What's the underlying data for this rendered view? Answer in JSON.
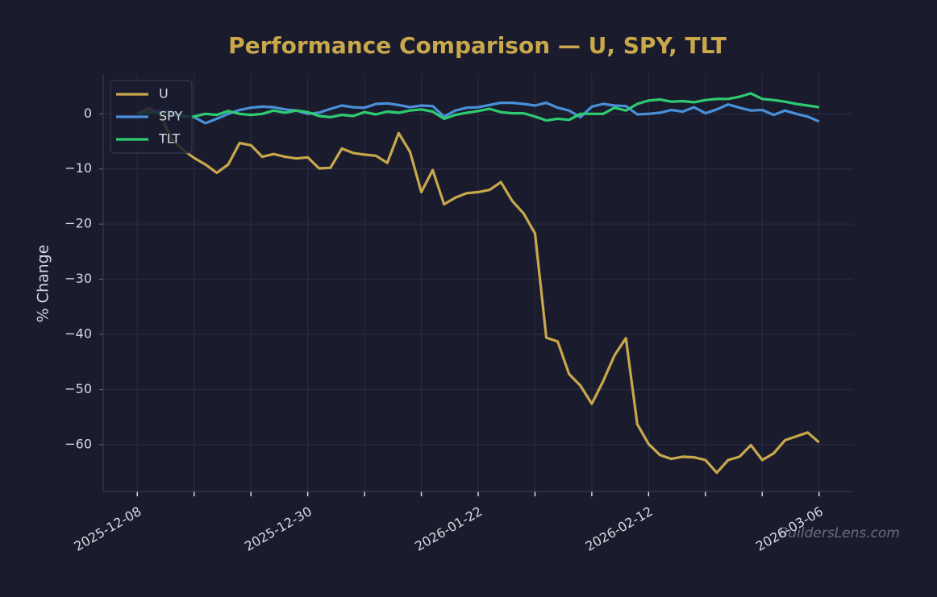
{
  "chart_data": {
    "type": "line",
    "title": "Performance Comparison — U, SPY, TLT",
    "y_label": "% Change",
    "watermark": "BuildersLens.com",
    "categories": [
      "2025-12-08",
      null,
      null,
      null,
      null,
      null,
      null,
      null,
      null,
      null,
      null,
      null,
      null,
      null,
      null,
      "2025-12-30",
      null,
      null,
      null,
      null,
      null,
      null,
      null,
      null,
      null,
      null,
      null,
      null,
      null,
      null,
      "2026-01-22",
      null,
      null,
      null,
      null,
      null,
      null,
      null,
      null,
      null,
      null,
      null,
      null,
      null,
      null,
      "2026-02-12",
      null,
      null,
      null,
      null,
      null,
      null,
      null,
      null,
      null,
      null,
      null,
      null,
      null,
      null,
      "2026-03-06"
    ],
    "series": [
      {
        "name": "U",
        "color": "#c9a84c",
        "values": [
          0,
          1,
          0,
          -4.5,
          -6.5,
          -8,
          -9.2,
          -10.7,
          -9.2,
          -5.3,
          -5.7,
          -7.8,
          -7.3,
          -7.8,
          -8.1,
          -7.9,
          -9.9,
          -9.8,
          -6.3,
          -7.1,
          -7.4,
          -7.6,
          -8.9,
          -3.5,
          -6.9,
          -14.2,
          -10.2,
          -16.4,
          -15.2,
          -14.4,
          -14.2,
          -13.8,
          -12.4,
          -15.8,
          -18.1,
          -21.7,
          -40.6,
          -41.3,
          -47.2,
          -49.3,
          -52.6,
          -48.5,
          -43.8,
          -40.7,
          -56.3,
          -59.9,
          -61.9,
          -62.6,
          -62.2,
          -62.3,
          -62.8,
          -65.1,
          -62.8,
          -62.2,
          -60.1,
          -62.8,
          -61.6,
          -59.2,
          -58.5,
          -57.8,
          -59.6
        ]
      },
      {
        "name": "SPY",
        "color": "#4a90d9",
        "values": [
          0,
          0.3,
          0.5,
          0.4,
          -0.3,
          -0.6,
          -1.7,
          -0.9,
          0,
          0.7,
          1.1,
          1.3,
          1.2,
          0.8,
          0.6,
          0,
          0.2,
          0.9,
          1.5,
          1.2,
          1.1,
          1.8,
          1.9,
          1.6,
          1.2,
          1.5,
          1.4,
          -0.5,
          0.6,
          1.1,
          1.2,
          1.6,
          2,
          2,
          1.8,
          1.5,
          2,
          1.1,
          0.6,
          -0.6,
          1.3,
          1.8,
          1.5,
          1.4,
          -0.1,
          0,
          0.2,
          0.7,
          0.4,
          1.2,
          0.1,
          0.8,
          1.7,
          1.1,
          0.6,
          0.7,
          -0.2,
          0.6,
          0,
          -0.5,
          -1.4
        ]
      },
      {
        "name": "TLT",
        "color": "#2ecc71",
        "values": [
          0,
          0.2,
          0.1,
          -0.2,
          -0.5,
          -0.5,
          0,
          -0.2,
          0.5,
          0,
          -0.2,
          0,
          0.6,
          0.2,
          0.6,
          0.3,
          -0.4,
          -0.6,
          -0.2,
          -0.4,
          0.3,
          -0.1,
          0.4,
          0.2,
          0.6,
          0.8,
          0.4,
          -0.9,
          -0.2,
          0.2,
          0.5,
          0.9,
          0.3,
          0.1,
          0.1,
          -0.5,
          -1.2,
          -0.9,
          -1.1,
          0,
          0,
          0,
          1.1,
          0.6,
          1.8,
          2.4,
          2.6,
          2.2,
          2.3,
          2.1,
          2.5,
          2.7,
          2.7,
          3.1,
          3.7,
          2.7,
          2.5,
          2.2,
          1.8,
          1.5,
          1.2
        ]
      }
    ],
    "ylim": [
      -68.5,
      7.2
    ],
    "yticks": [
      {
        "value": -60,
        "label": "−60"
      },
      {
        "value": -50,
        "label": "−50"
      },
      {
        "value": -40,
        "label": "−40"
      },
      {
        "value": -30,
        "label": "−30"
      },
      {
        "value": -20,
        "label": "−20"
      },
      {
        "value": -10,
        "label": "−10"
      },
      0
    ],
    "grid": true,
    "legend": "upper left"
  }
}
